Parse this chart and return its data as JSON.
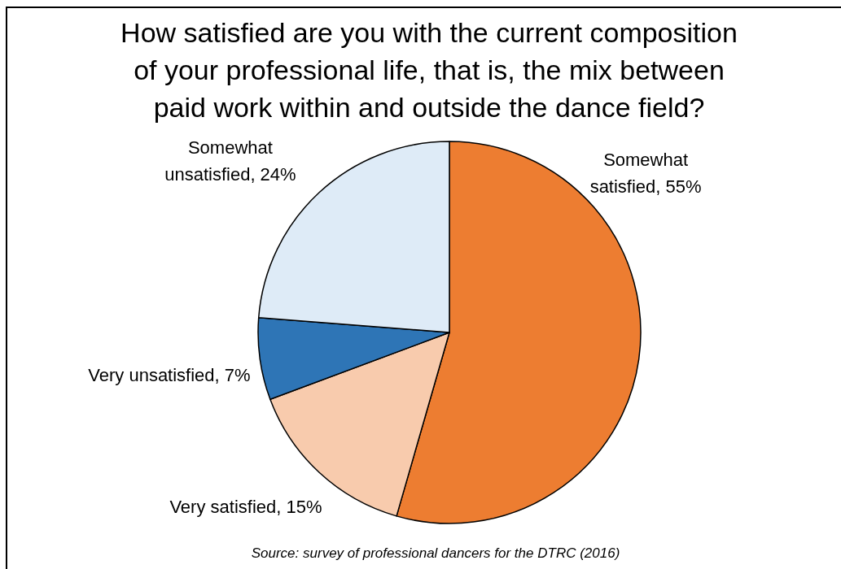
{
  "chart_data": {
    "type": "pie",
    "title": "How satisfied are you with the current composition of your professional life, that is, the mix between paid work within and outside the dance field?",
    "categories": [
      "Somewhat satisfied",
      "Very satisfied",
      "Very unsatisfied",
      "Somewhat unsatisfied"
    ],
    "values": [
      55,
      15,
      7,
      24
    ],
    "colors": [
      "#ed7d31",
      "#f8cbad",
      "#2e75b6",
      "#deebf7"
    ],
    "value_labels": [
      "55%",
      "15%",
      "7%",
      "24%"
    ],
    "annotations": [
      "Source: survey of professional dancers for the DTRC (2016)"
    ]
  }
}
